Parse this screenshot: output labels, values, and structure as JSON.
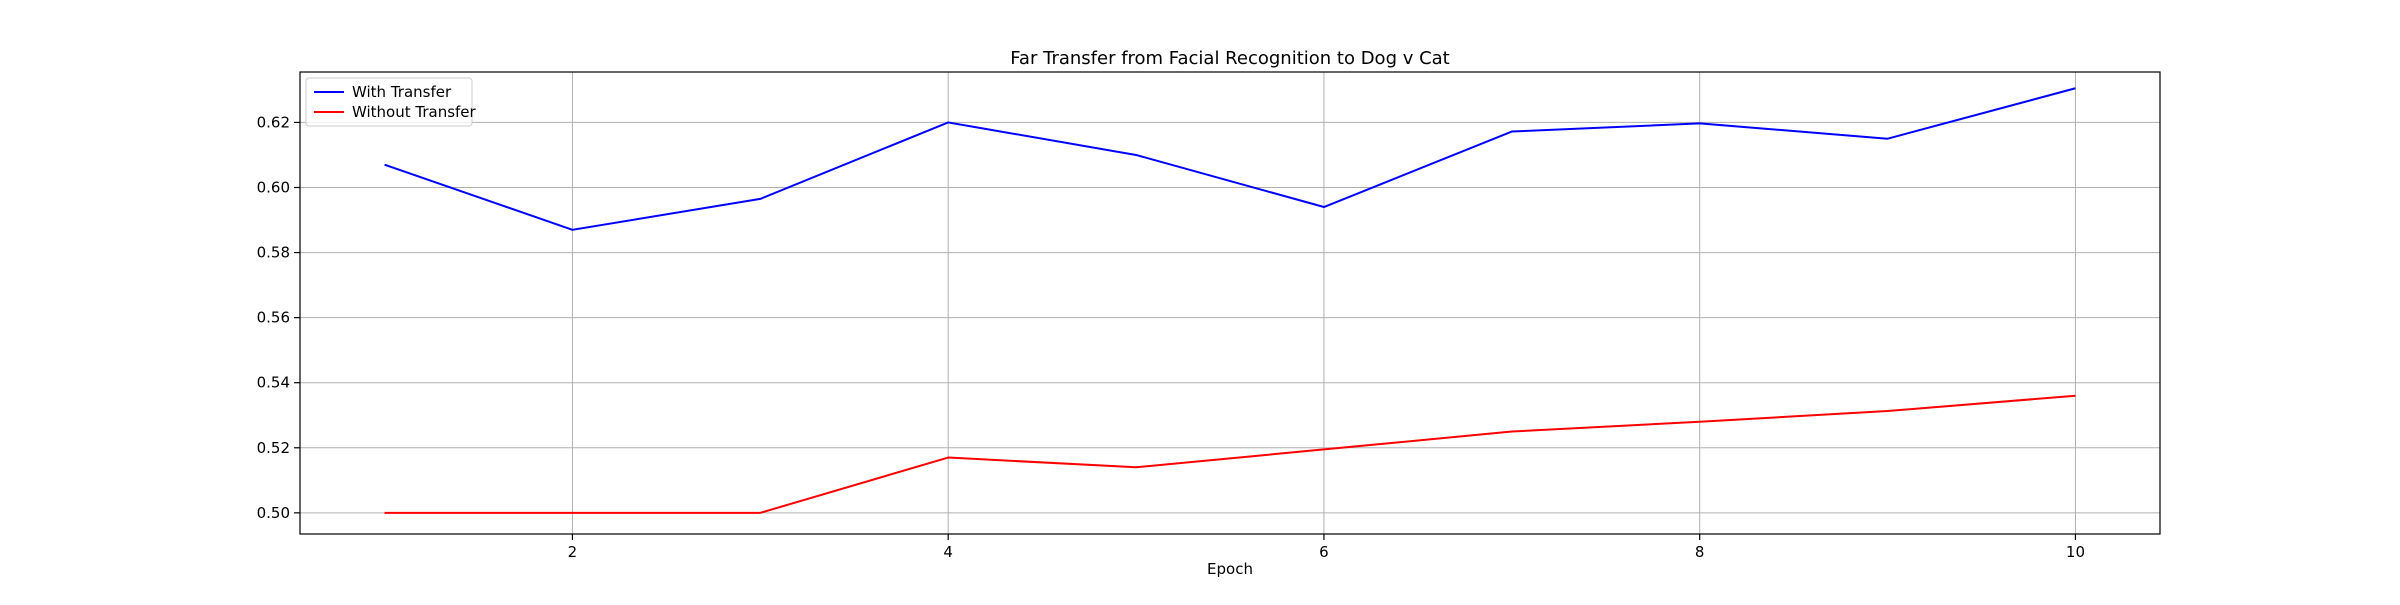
{
  "chart_data": {
    "type": "line",
    "title": "Far Transfer from Facial Recognition to Dog v Cat",
    "xlabel": "Epoch",
    "ylabel": "",
    "x": [
      1,
      2,
      3,
      4,
      5,
      6,
      7,
      8,
      9,
      10
    ],
    "xlim": [
      0.55,
      10.45
    ],
    "ylim": [
      0.4935,
      0.6355
    ],
    "xticks": [
      2,
      4,
      6,
      8,
      10
    ],
    "xtick_labels": [
      "2",
      "4",
      "6",
      "8",
      "10"
    ],
    "yticks": [
      0.5,
      0.52,
      0.54,
      0.56,
      0.58,
      0.6,
      0.62
    ],
    "ytick_labels": [
      "0.50",
      "0.52",
      "0.54",
      "0.56",
      "0.58",
      "0.60",
      "0.62"
    ],
    "grid": true,
    "legend_position": "top-left",
    "series": [
      {
        "name": "With Transfer",
        "color": "#0000ff",
        "values": [
          0.607,
          0.587,
          0.5965,
          0.62,
          0.61,
          0.594,
          0.6172,
          0.6197,
          0.615,
          0.6305
        ]
      },
      {
        "name": "Without Transfer",
        "color": "#ff0000",
        "values": [
          0.5,
          0.5,
          0.5,
          0.517,
          0.514,
          0.5195,
          0.525,
          0.528,
          0.5313,
          0.536
        ]
      }
    ]
  }
}
